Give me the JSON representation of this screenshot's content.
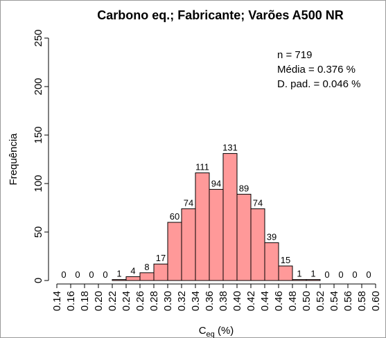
{
  "chart_data": {
    "type": "histogram",
    "title": "Carbono eq.; Fabricante; Varões A500 NR",
    "xlabel": {
      "main": "C",
      "sub": "eq",
      "rest": " (%)"
    },
    "ylabel": "Frequência",
    "bins": [
      0.14,
      0.16,
      0.18,
      0.2,
      0.22,
      0.24,
      0.26,
      0.28,
      0.3,
      0.32,
      0.34,
      0.36,
      0.38,
      0.4,
      0.42,
      0.44,
      0.46,
      0.48,
      0.5,
      0.52,
      0.54,
      0.56,
      0.58,
      0.6
    ],
    "values": [
      0,
      0,
      0,
      0,
      1,
      4,
      8,
      17,
      60,
      74,
      111,
      94,
      131,
      89,
      74,
      39,
      15,
      1,
      1,
      0,
      0,
      0,
      0
    ],
    "color": "#ff9999",
    "edgecolor": "#000000",
    "xlim": [
      0.14,
      0.6
    ],
    "xticks": [
      0.14,
      0.16,
      0.18,
      {
        "value": 0.2,
        "label": "0.20"
      },
      0.22,
      0.24,
      0.26,
      0.28,
      {
        "value": 0.3,
        "label": "0.30"
      },
      0.32,
      0.34,
      0.36,
      0.38,
      {
        "value": 0.4,
        "label": "0.40"
      },
      0.42,
      0.44,
      0.46,
      0.48,
      {
        "value": 0.5,
        "label": "0.50"
      },
      0.52,
      0.54,
      0.56,
      0.58,
      {
        "value": 0.6,
        "label": "0.60"
      }
    ],
    "ylim": [
      0,
      250
    ],
    "yticks": [
      0,
      50,
      100,
      150,
      200,
      250
    ],
    "annotations": [
      "n = 719",
      "Média = 0.376 %",
      "D. pad. = 0.046 %"
    ]
  }
}
